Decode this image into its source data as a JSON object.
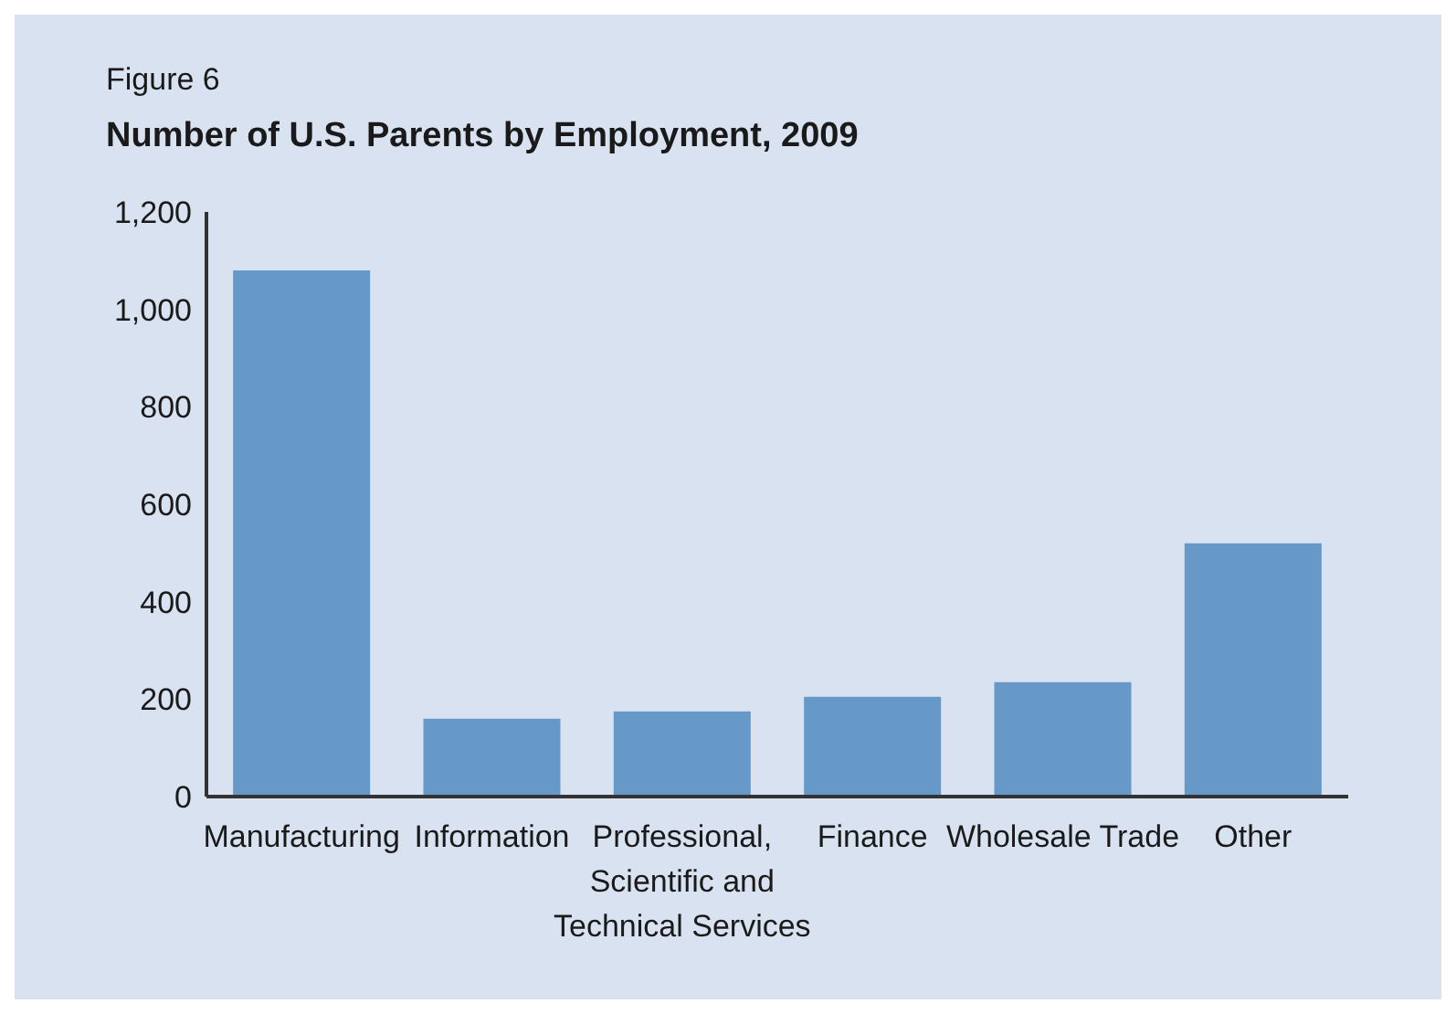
{
  "chart_data": {
    "type": "bar",
    "subtitle": "Figure 6",
    "title": "Number of U.S. Parents by Employment, 2009",
    "categories": [
      "Manufacturing",
      "Information",
      "Professional, Scientific and Technical Services",
      "Finance",
      "Wholesale Trade",
      "Other"
    ],
    "values": [
      1080,
      160,
      175,
      205,
      235,
      520
    ],
    "color": "#6699c8",
    "ylim": [
      0,
      1200
    ],
    "yticks": [
      0,
      200,
      400,
      600,
      800,
      {
        "value": 1000,
        "label": "1,000"
      },
      {
        "value": 1200,
        "label": "1,200"
      }
    ],
    "grid": false,
    "legend": false
  }
}
